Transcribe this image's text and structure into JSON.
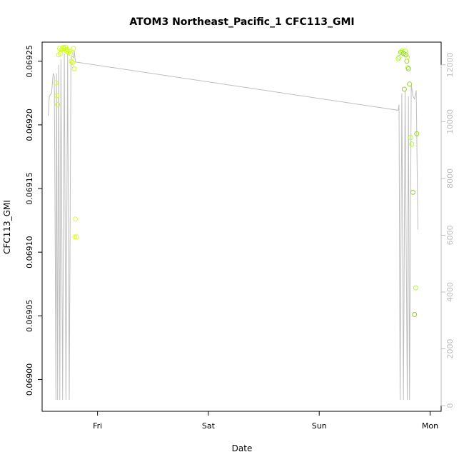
{
  "chart_data": {
    "type": "scatter",
    "title": "ATOM3 Northeast_Pacific_1 CFC113_GMI",
    "xlabel": "Date",
    "ylabel": "CFC113_GMI",
    "x_ticks": [
      "Fri",
      "Sat",
      "Sun",
      "Mon"
    ],
    "x_tick_values": [
      1.0,
      2.0,
      3.0,
      4.0
    ],
    "xlim": [
      0.5,
      4.1
    ],
    "ylim": [
      0.068975,
      0.069265
    ],
    "y_ticks": [
      "0.06900",
      "0.06905",
      "0.06910",
      "0.06915",
      "0.06920",
      "0.06925"
    ],
    "y_tick_values": [
      0.069,
      0.06905,
      0.0691,
      0.06915,
      0.0692,
      0.06925
    ],
    "y2lim": [
      -200,
      12800
    ],
    "y2_ticks": [
      "0",
      "2000",
      "4000",
      "6000",
      "8000",
      "10000",
      "12000"
    ],
    "y2_tick_values": [
      0,
      2000,
      4000,
      6000,
      8000,
      10000,
      12000
    ],
    "grid": false,
    "colors": {
      "axis": "#000000",
      "right_axis": "#bebebe",
      "altitude_line": "#bebebe",
      "points_palette": [
        "#9acd32",
        "#adff2f",
        "#c6ff1a",
        "#e0ff1f"
      ]
    },
    "series": [
      {
        "role": "points",
        "x": [
          0.625,
          0.633,
          0.64,
          0.648,
          0.657,
          0.666,
          0.675,
          0.684,
          0.693,
          0.702,
          0.711,
          0.72,
          0.728,
          0.737,
          0.746,
          0.755,
          0.764,
          0.773,
          0.782,
          0.79,
          0.795,
          0.8,
          0.81,
          3.712,
          3.72,
          3.735,
          3.745,
          3.752,
          3.76,
          3.768,
          3.775,
          3.782,
          3.79,
          3.795,
          3.8,
          3.805,
          3.815,
          3.825,
          3.835,
          3.845,
          3.86,
          3.87,
          3.88
        ],
        "y": [
          0.069233,
          0.069223,
          0.069216,
          0.069255,
          0.06926,
          0.069256,
          0.069259,
          0.06926,
          0.069261,
          0.06926,
          0.069261,
          0.069258,
          0.069259,
          0.069257,
          0.069258,
          0.069256,
          0.06925,
          0.069249,
          0.06926,
          0.069244,
          0.069112,
          0.069126,
          0.069112,
          0.069252,
          0.069253,
          0.069257,
          0.069258,
          0.069257,
          0.069256,
          0.069228,
          0.069258,
          0.069255,
          0.06925,
          0.069253,
          0.069245,
          0.069244,
          0.069232,
          0.06919,
          0.069185,
          0.069147,
          0.069051,
          0.069072,
          0.069193
        ],
        "colors": [
          "#d4ff1f",
          "#d4ff1f",
          "#c6ff1a",
          "#c6ff1a",
          "#d4ff1f",
          "#d4ff1f",
          "#c6ff1a",
          "#d4ff1f",
          "#d4ff1f",
          "#c6ff1a",
          "#d4ff1f",
          "#d4ff1f",
          "#c6ff1a",
          "#d4ff1f",
          "#d4ff1f",
          "#c6ff1a",
          "#c6ff1a",
          "#c6ff1a",
          "#d4ff1f",
          "#c6ff1a",
          "#e0ff1f",
          "#e0ff1f",
          "#d4ff1f",
          "#adff2f",
          "#adff2f",
          "#9acd32",
          "#adff2f",
          "#adff2f",
          "#9acd32",
          "#9acd32",
          "#adff2f",
          "#9acd32",
          "#9acd32",
          "#adff2f",
          "#adff2f",
          "#9acd32",
          "#9acd32",
          "#adff2f",
          "#adff2f",
          "#9acd32",
          "#9acd32",
          "#adff2f",
          "#9acd32"
        ]
      },
      {
        "role": "altitude_line",
        "x": [
          0.555,
          0.565,
          0.585,
          0.6,
          0.61,
          0.625,
          0.63,
          0.64,
          0.65,
          0.66,
          0.67,
          0.685,
          0.7,
          0.715,
          0.73,
          0.745,
          0.76,
          0.77,
          0.785,
          0.79,
          0.8,
          3.712,
          3.72,
          3.73,
          3.745,
          3.76,
          3.775,
          3.795,
          3.805,
          3.815,
          3.83,
          3.845,
          3.86,
          3.875,
          3.89
        ],
        "y": [
          10200,
          10900,
          11000,
          11700,
          11600,
          200,
          11700,
          200,
          12000,
          200,
          12200,
          200,
          12400,
          200,
          12400,
          200,
          12200,
          12300,
          12250,
          12500,
          12100,
          10400,
          10600,
          200,
          11000,
          200,
          11100,
          200,
          10900,
          200,
          11300,
          10900,
          10800,
          11100,
          6200
        ]
      }
    ]
  }
}
